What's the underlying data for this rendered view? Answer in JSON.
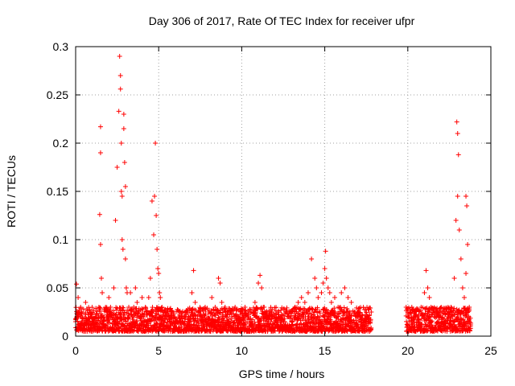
{
  "chart_data": {
    "type": "scatter",
    "title": "Day 306 of 2017, Rate Of TEC Index for receiver ufpr",
    "xlabel": "GPS time / hours",
    "ylabel": "ROTI / TECUs",
    "xlim": [
      0,
      25
    ],
    "ylim": [
      0,
      0.3
    ],
    "xticks": [
      0,
      5,
      10,
      15,
      20,
      25
    ],
    "xtick_labels": [
      "0",
      "5",
      "10",
      "15",
      "20",
      "25"
    ],
    "yticks": [
      0,
      0.05,
      0.1,
      0.15,
      0.2,
      0.25,
      0.3
    ],
    "ytick_labels": [
      "0",
      "0.05",
      "0.1",
      "0.15",
      "0.2",
      "0.25",
      "0.3"
    ],
    "grid": true,
    "marker": "plus",
    "color": "#ff0000",
    "series": [
      {
        "name": "ROTI",
        "x": [
          0.0,
          0.05,
          0.1,
          0.15,
          0.2,
          0.3,
          0.4,
          0.5,
          0.6,
          0.7,
          0.8,
          0.9,
          1.0,
          1.1,
          1.2,
          1.3,
          1.4,
          1.45,
          1.5,
          1.5,
          1.5,
          1.55,
          1.6,
          1.7,
          1.8,
          1.9,
          2.0,
          2.1,
          2.2,
          2.3,
          2.4,
          2.5,
          2.6,
          2.65,
          2.7,
          2.7,
          2.75,
          2.75,
          2.8,
          2.8,
          2.85,
          2.9,
          2.9,
          2.95,
          3.0,
          3.0,
          3.05,
          3.1,
          3.2,
          3.3,
          3.4,
          3.5,
          3.6,
          3.7,
          3.8,
          3.9,
          4.0,
          4.1,
          4.2,
          4.3,
          4.4,
          4.5,
          4.6,
          4.7,
          4.75,
          4.8,
          4.85,
          4.9,
          4.95,
          5.0,
          5.05,
          5.1,
          5.2,
          5.3,
          5.4,
          5.5,
          5.6,
          5.7,
          5.8,
          5.9,
          6.0,
          6.2,
          6.4,
          6.6,
          6.8,
          7.0,
          7.1,
          7.2,
          7.4,
          7.6,
          7.8,
          8.0,
          8.2,
          8.4,
          8.6,
          8.7,
          8.8,
          9.0,
          9.2,
          9.4,
          9.6,
          9.8,
          10.0,
          10.2,
          10.4,
          10.6,
          10.8,
          11.0,
          11.1,
          11.2,
          11.3,
          11.4,
          11.6,
          11.8,
          12.0,
          12.2,
          12.4,
          12.6,
          12.8,
          13.0,
          13.2,
          13.4,
          13.6,
          13.8,
          14.0,
          14.2,
          14.4,
          14.5,
          14.6,
          14.8,
          14.9,
          15.0,
          15.05,
          15.1,
          15.2,
          15.3,
          15.4,
          15.6,
          15.8,
          16.0,
          16.2,
          16.4,
          16.6,
          16.8,
          17.0,
          17.2,
          17.4,
          17.6,
          17.8,
          19.9,
          20.0,
          20.2,
          20.4,
          20.6,
          20.8,
          21.0,
          21.1,
          21.2,
          21.3,
          21.4,
          21.6,
          21.8,
          22.0,
          22.2,
          22.4,
          22.6,
          22.8,
          22.9,
          22.95,
          23.0,
          23.0,
          23.05,
          23.1,
          23.2,
          23.3,
          23.4,
          23.5,
          23.5,
          23.55,
          23.6,
          23.7
        ],
        "y": [
          0.015,
          0.054,
          0.02,
          0.04,
          0.012,
          0.03,
          0.018,
          0.014,
          0.035,
          0.016,
          0.012,
          0.02,
          0.015,
          0.013,
          0.02,
          0.018,
          0.03,
          0.126,
          0.217,
          0.19,
          0.095,
          0.06,
          0.045,
          0.02,
          0.03,
          0.025,
          0.04,
          0.03,
          0.02,
          0.05,
          0.12,
          0.175,
          0.233,
          0.29,
          0.27,
          0.256,
          0.2,
          0.15,
          0.145,
          0.1,
          0.09,
          0.23,
          0.215,
          0.18,
          0.155,
          0.08,
          0.05,
          0.045,
          0.03,
          0.045,
          0.02,
          0.03,
          0.05,
          0.035,
          0.025,
          0.02,
          0.04,
          0.02,
          0.03,
          0.015,
          0.04,
          0.06,
          0.14,
          0.105,
          0.145,
          0.2,
          0.125,
          0.09,
          0.07,
          0.065,
          0.045,
          0.04,
          0.03,
          0.025,
          0.02,
          0.018,
          0.02,
          0.015,
          0.02,
          0.018,
          0.015,
          0.02,
          0.018,
          0.025,
          0.02,
          0.045,
          0.068,
          0.035,
          0.025,
          0.02,
          0.03,
          0.025,
          0.04,
          0.03,
          0.06,
          0.055,
          0.035,
          0.03,
          0.025,
          0.02,
          0.03,
          0.02,
          0.025,
          0.03,
          0.02,
          0.025,
          0.035,
          0.055,
          0.063,
          0.05,
          0.03,
          0.025,
          0.02,
          0.018,
          0.015,
          0.02,
          0.018,
          0.015,
          0.02,
          0.025,
          0.03,
          0.035,
          0.04,
          0.035,
          0.045,
          0.08,
          0.06,
          0.05,
          0.04,
          0.045,
          0.055,
          0.07,
          0.088,
          0.06,
          0.05,
          0.045,
          0.035,
          0.04,
          0.03,
          0.045,
          0.05,
          0.04,
          0.035,
          0.025,
          0.02,
          0.015,
          0.018,
          0.015,
          0.025,
          0.03,
          0.02,
          0.015,
          0.025,
          0.02,
          0.03,
          0.045,
          0.068,
          0.05,
          0.04,
          0.03,
          0.02,
          0.025,
          0.02,
          0.018,
          0.02,
          0.03,
          0.06,
          0.12,
          0.222,
          0.21,
          0.145,
          0.188,
          0.11,
          0.08,
          0.05,
          0.04,
          0.065,
          0.145,
          0.135,
          0.095,
          0.03
        ]
      }
    ],
    "dense_band": {
      "description_hidden": true,
      "segments": [
        {
          "x_start": 0.0,
          "x_end": 17.8,
          "y_min": 0.005,
          "y_max": 0.03
        },
        {
          "x_start": 19.9,
          "x_end": 23.8,
          "y_min": 0.005,
          "y_max": 0.03
        }
      ],
      "points_per_hour": 120
    }
  }
}
